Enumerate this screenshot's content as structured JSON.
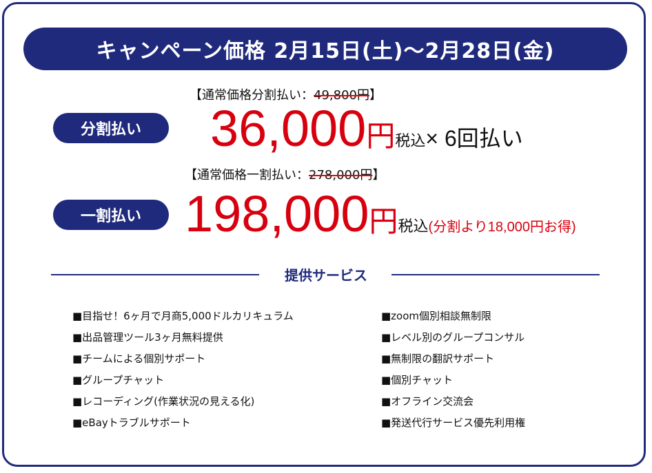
{
  "banner": "キャンペーン価格 2月15日(土)〜2月28日(金)",
  "installment": {
    "label": "分割払い",
    "note_prefix": "【通常価格分割払い：",
    "note_old": "49,800円",
    "note_suffix": "】",
    "price": "36,000",
    "yen": "円",
    "tax": "税込",
    "times": "× 6回払い"
  },
  "lump": {
    "label": "一割払い",
    "note_prefix": "【通常価格一割払い：",
    "note_old": "278,000円",
    "note_suffix": "】",
    "price": "198,000",
    "yen": "円",
    "tax": "税込",
    "saving": "(分割より18,000円お得)"
  },
  "services": {
    "title": "提供サービス",
    "left": [
      "■目指せ！6ヶ月で月商5,000ドルカリキュラム",
      "■出品管理ツール3ヶ月無料提供",
      "■チームによる個別サポート",
      "■グループチャット",
      "■レコーディング(作業状況の見える化)",
      "■eBayトラブルサポート"
    ],
    "right": [
      "■zoom個別相談無制限",
      "■レベル別のグループコンサル",
      "■無制限の翻訳サポート",
      "■個別チャット",
      "■オフライン交流会",
      "■発送代行サービス優先利用権"
    ]
  },
  "colors": {
    "navy": "#1f2a7c",
    "red": "#d7000f"
  }
}
